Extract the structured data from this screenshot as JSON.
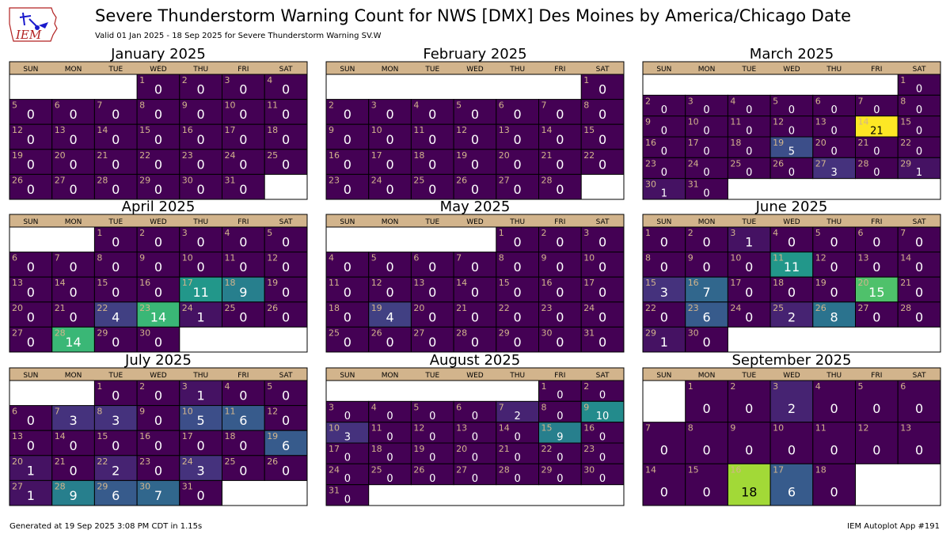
{
  "header": {
    "logo_text": "IEM",
    "title": "Severe Thunderstorm Warning Count for NWS [DMX] Des Moines by America/Chicago Date",
    "subtitle": "Valid 01 Jan 2025 - 18 Sep 2025 for Severe Thunderstorm Warning SV.W"
  },
  "footer": {
    "generated": "Generated at 19 Sep 2025 3:08 PM CDT in 1.15s",
    "app": "IEM Autoplot App #191"
  },
  "colors": {
    "header_bar": "#d2b48c",
    "colormap": "viridis",
    "day_number": "#d2b48c"
  },
  "chart_data": {
    "type": "heatmap",
    "layout": "monthly-calendar",
    "weekdays": [
      "SUN",
      "MON",
      "TUE",
      "WED",
      "THU",
      "FRI",
      "SAT"
    ],
    "value_range": [
      0,
      21
    ],
    "months": [
      {
        "name": "January 2025",
        "first_weekday": 3,
        "days": 31,
        "values": {}
      },
      {
        "name": "February 2025",
        "first_weekday": 6,
        "days": 28,
        "values": {}
      },
      {
        "name": "March 2025",
        "first_weekday": 6,
        "days": 31,
        "values": {
          "14": 21,
          "19": 5,
          "27": 3,
          "29": 1,
          "30": 1
        }
      },
      {
        "name": "April 2025",
        "first_weekday": 2,
        "days": 30,
        "values": {
          "17": 11,
          "18": 9,
          "22": 4,
          "23": 14,
          "24": 1,
          "28": 14
        }
      },
      {
        "name": "May 2025",
        "first_weekday": 4,
        "days": 31,
        "values": {
          "19": 4
        }
      },
      {
        "name": "June 2025",
        "first_weekday": 0,
        "days": 30,
        "values": {
          "3": 1,
          "11": 11,
          "15": 3,
          "16": 7,
          "20": 15,
          "23": 6,
          "25": 2,
          "26": 8,
          "29": 1
        }
      },
      {
        "name": "July 2025",
        "first_weekday": 2,
        "days": 31,
        "values": {
          "3": 1,
          "7": 3,
          "8": 3,
          "10": 5,
          "11": 6,
          "19": 6,
          "20": 1,
          "22": 2,
          "24": 3,
          "27": 1,
          "28": 9,
          "29": 6,
          "30": 7
        }
      },
      {
        "name": "August 2025",
        "first_weekday": 5,
        "days": 31,
        "values": {
          "7": 2,
          "9": 10,
          "10": 3,
          "15": 9
        }
      },
      {
        "name": "September 2025",
        "first_weekday": 1,
        "days": 18,
        "values": {
          "3": 2,
          "16": 18,
          "17": 6
        }
      }
    ]
  }
}
